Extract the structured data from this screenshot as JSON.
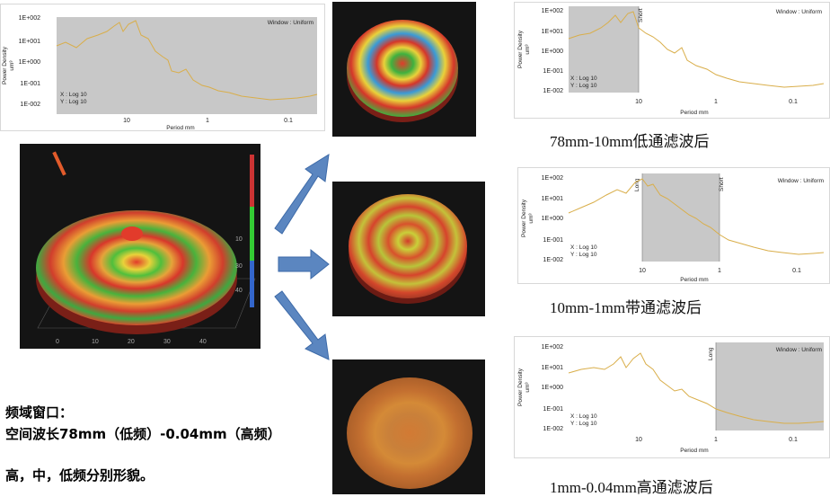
{
  "psd_plot": {
    "ytick_labels": [
      "1E+002",
      "1E+001",
      "1E+000",
      "1E-001",
      "1E-002"
    ],
    "xtick_labels": [
      "10",
      "1",
      "0.1"
    ],
    "xlabel": "Period mm",
    "ylabel": "Power Density",
    "yunit": "um³",
    "window_label": "Window : Uniform",
    "scale_x": "X : Log 10",
    "scale_y": "Y : Log 10",
    "short_label": "Short",
    "long_label": "Long"
  },
  "captions": {
    "low_pass": "78mm-10mm低通滤波后",
    "band_pass": "10mm-1mm带通滤波后",
    "high_pass": "1mm-0.04mm高通滤波后"
  },
  "notes": {
    "line1": "频域窗口：",
    "line2": "空间波长78mm（低频）-0.04mm（高频）",
    "line3": "高，中，低频分别形貌。"
  },
  "surface_axis_ticks": [
    "10",
    "20",
    "30",
    "40",
    "50",
    "0",
    "10",
    "20",
    "30",
    "40",
    "50"
  ],
  "colors": {
    "psd_line": "#d9ae4a",
    "filter_shade": "#c8c8c8",
    "arrow": "#5b86c0"
  }
}
